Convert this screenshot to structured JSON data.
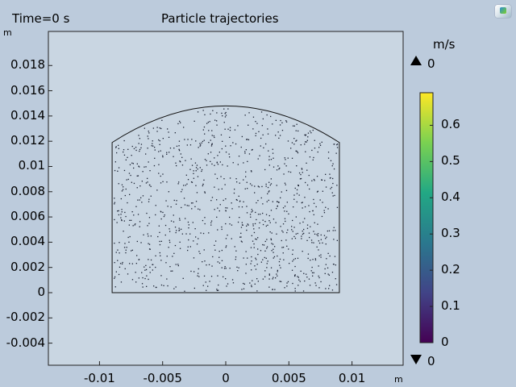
{
  "header": {
    "time_label": "Time=0 s",
    "plot_title": "Particle trajectories"
  },
  "axes": {
    "x_unit": "m",
    "y_unit": "m",
    "x_ticks": [
      {
        "value": -0.01,
        "label": "-0.01"
      },
      {
        "value": -0.005,
        "label": "-0.005"
      },
      {
        "value": 0,
        "label": "0"
      },
      {
        "value": 0.005,
        "label": "0.005"
      },
      {
        "value": 0.01,
        "label": "0.01"
      }
    ],
    "y_ticks": [
      {
        "value": 0.018,
        "label": "0.018"
      },
      {
        "value": 0.016,
        "label": "0.016"
      },
      {
        "value": 0.014,
        "label": "0.014"
      },
      {
        "value": 0.012,
        "label": "0.012"
      },
      {
        "value": 0.01,
        "label": "0.01"
      },
      {
        "value": 0.008,
        "label": "0.008"
      },
      {
        "value": 0.006,
        "label": "0.006"
      },
      {
        "value": 0.004,
        "label": "0.004"
      },
      {
        "value": 0.002,
        "label": "0.002"
      },
      {
        "value": 0,
        "label": "0"
      },
      {
        "value": -0.002,
        "label": "-0.002"
      },
      {
        "value": -0.004,
        "label": "-0.004"
      }
    ],
    "xlim": [
      -0.01405,
      0.01405
    ],
    "ylim": [
      -0.00575,
      0.0207
    ]
  },
  "geometry": {
    "x_left": -0.009,
    "x_right": 0.009,
    "y_bottom": 0,
    "y_wall_top": 0.0119,
    "y_apex": 0.0148,
    "particle_seed": 7,
    "particle_count": 1100
  },
  "colorbar": {
    "unit": "m/s",
    "max_marker": "0",
    "min_marker": "0",
    "ticks": [
      {
        "value": 0.6,
        "label": "0.6"
      },
      {
        "value": 0.5,
        "label": "0.5"
      },
      {
        "value": 0.4,
        "label": "0.4"
      },
      {
        "value": 0.3,
        "label": "0.3"
      },
      {
        "value": 0.2,
        "label": "0.2"
      },
      {
        "value": 0.1,
        "label": "0.1"
      },
      {
        "value": 0,
        "label": "0"
      }
    ],
    "range": [
      0,
      0.69
    ],
    "colors": [
      "#440154",
      "#414487",
      "#2a788e",
      "#22a884",
      "#7ad151",
      "#fde725"
    ]
  },
  "colors": {
    "background": "#bccbdc",
    "plot_background": "#c9d6e2",
    "particle": "#1c2233"
  }
}
